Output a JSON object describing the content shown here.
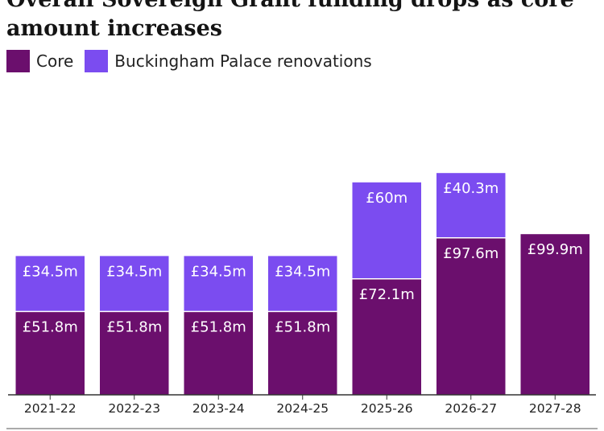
{
  "title": "Overall Sovereign Grant funding drops as core amount increases",
  "legend": {
    "core": "Core",
    "renovations": "Buckingham Palace renovations"
  },
  "colors": {
    "core": "#6b0f6d",
    "renovations": "#7b4cf0",
    "axis": "#333333",
    "background": "#ffffff"
  },
  "chart_data": {
    "type": "bar",
    "stacked": true,
    "title": "Overall Sovereign Grant funding drops as core amount increases",
    "xlabel": "",
    "ylabel": "",
    "grid": false,
    "legend_position": "top-left",
    "ylim": [
      0,
      145
    ],
    "categories": [
      "2021-22",
      "2022-23",
      "2023-24",
      "2024-25",
      "2025-26",
      "2026-27",
      "2027-28"
    ],
    "series": [
      {
        "name": "Core",
        "values": [
          51.8,
          51.8,
          51.8,
          51.8,
          72.1,
          97.6,
          99.9
        ],
        "labels": [
          "£51.8m",
          "£51.8m",
          "£51.8m",
          "£51.8m",
          "£72.1m",
          "£97.6m",
          "£99.9m"
        ]
      },
      {
        "name": "Buckingham Palace renovations",
        "values": [
          34.5,
          34.5,
          34.5,
          34.5,
          60,
          40.3,
          null
        ],
        "labels": [
          "£34.5m",
          "£34.5m",
          "£34.5m",
          "£34.5m",
          "£60m",
          "£40.3m",
          null
        ]
      }
    ]
  }
}
